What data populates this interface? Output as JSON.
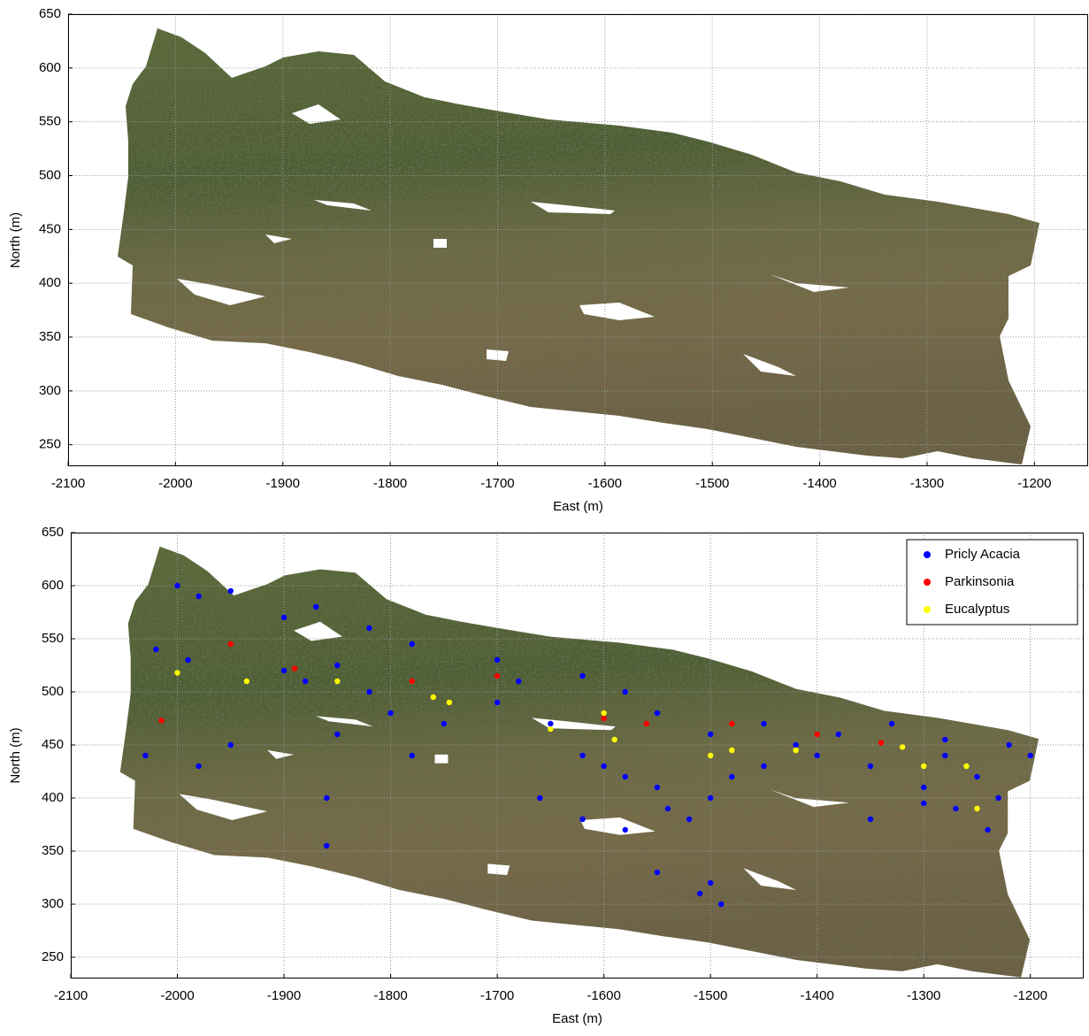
{
  "chart_data": [
    {
      "type": "image",
      "xlabel": "East (m)",
      "ylabel": "North (m)",
      "xlim": [
        -2100,
        -1150
      ],
      "ylim": [
        230,
        650
      ],
      "xticks": [
        -2100,
        -2000,
        -1900,
        -1800,
        -1700,
        -1600,
        -1500,
        -1400,
        -1300,
        -1200
      ],
      "yticks": [
        250,
        300,
        350,
        400,
        450,
        500,
        550,
        600,
        650
      ],
      "grid": true
    },
    {
      "type": "scatter",
      "xlabel": "East (m)",
      "ylabel": "North (m)",
      "xlim": [
        -2100,
        -1150
      ],
      "ylim": [
        230,
        650
      ],
      "xticks": [
        -2100,
        -2000,
        -1900,
        -1800,
        -1700,
        -1600,
        -1500,
        -1400,
        -1300,
        -1200
      ],
      "yticks": [
        250,
        300,
        350,
        400,
        450,
        500,
        550,
        600,
        650
      ],
      "grid": true,
      "legend": "upper right",
      "series": [
        {
          "name": "Pricly Acacia",
          "color": "#0000ff",
          "x": [
            -2000,
            -1980,
            -1950,
            -2020,
            -1990,
            -1900,
            -1880,
            -1850,
            -1820,
            -1800,
            -1750,
            -1700,
            -1650,
            -1620,
            -1600,
            -1580,
            -1550,
            -1520,
            -1500,
            -1480,
            -1450,
            -1400,
            -1350,
            -1300,
            -1250,
            -1230,
            -1240,
            -1280,
            -1220,
            -1900,
            -1870,
            -1820,
            -1780,
            -1700,
            -1680,
            -1620,
            -1580,
            -1550,
            -1500,
            -1450,
            -1420,
            -1380,
            -1330,
            -1280,
            -1200,
            -2030,
            -1980,
            -1950,
            -1850,
            -1780,
            -1500,
            -1490,
            -1510,
            -1550,
            -1860,
            -1860,
            -1660,
            -1620,
            -1580,
            -1540,
            -1350,
            -1300,
            -1270
          ],
          "values": [
            600,
            590,
            595,
            540,
            530,
            520,
            510,
            525,
            500,
            480,
            470,
            490,
            470,
            440,
            430,
            420,
            410,
            380,
            400,
            420,
            430,
            440,
            430,
            410,
            420,
            400,
            370,
            440,
            450,
            570,
            580,
            560,
            545,
            530,
            510,
            515,
            500,
            480,
            460,
            470,
            450,
            460,
            470,
            455,
            440,
            440,
            430,
            450,
            460,
            440,
            320,
            300,
            310,
            330,
            355,
            400,
            400,
            380,
            370,
            390,
            380,
            395,
            390
          ]
        },
        {
          "name": "Parkinsonia",
          "color": "#ff0000",
          "x": [
            -2015,
            -1890,
            -1780,
            -1700,
            -1600,
            -1560,
            -1400,
            -1340,
            -1480,
            -1950
          ],
          "values": [
            473,
            522,
            510,
            515,
            475,
            470,
            460,
            452,
            470,
            545
          ]
        },
        {
          "name": "Eucalyptus",
          "color": "#ffff00",
          "x": [
            -2000,
            -1935,
            -1850,
            -1760,
            -1745,
            -1650,
            -1590,
            -1500,
            -1480,
            -1420,
            -1320,
            -1260,
            -1250,
            -1300,
            -1600
          ],
          "values": [
            518,
            510,
            510,
            495,
            490,
            465,
            455,
            440,
            445,
            445,
            448,
            430,
            390,
            430,
            480
          ]
        }
      ]
    }
  ]
}
